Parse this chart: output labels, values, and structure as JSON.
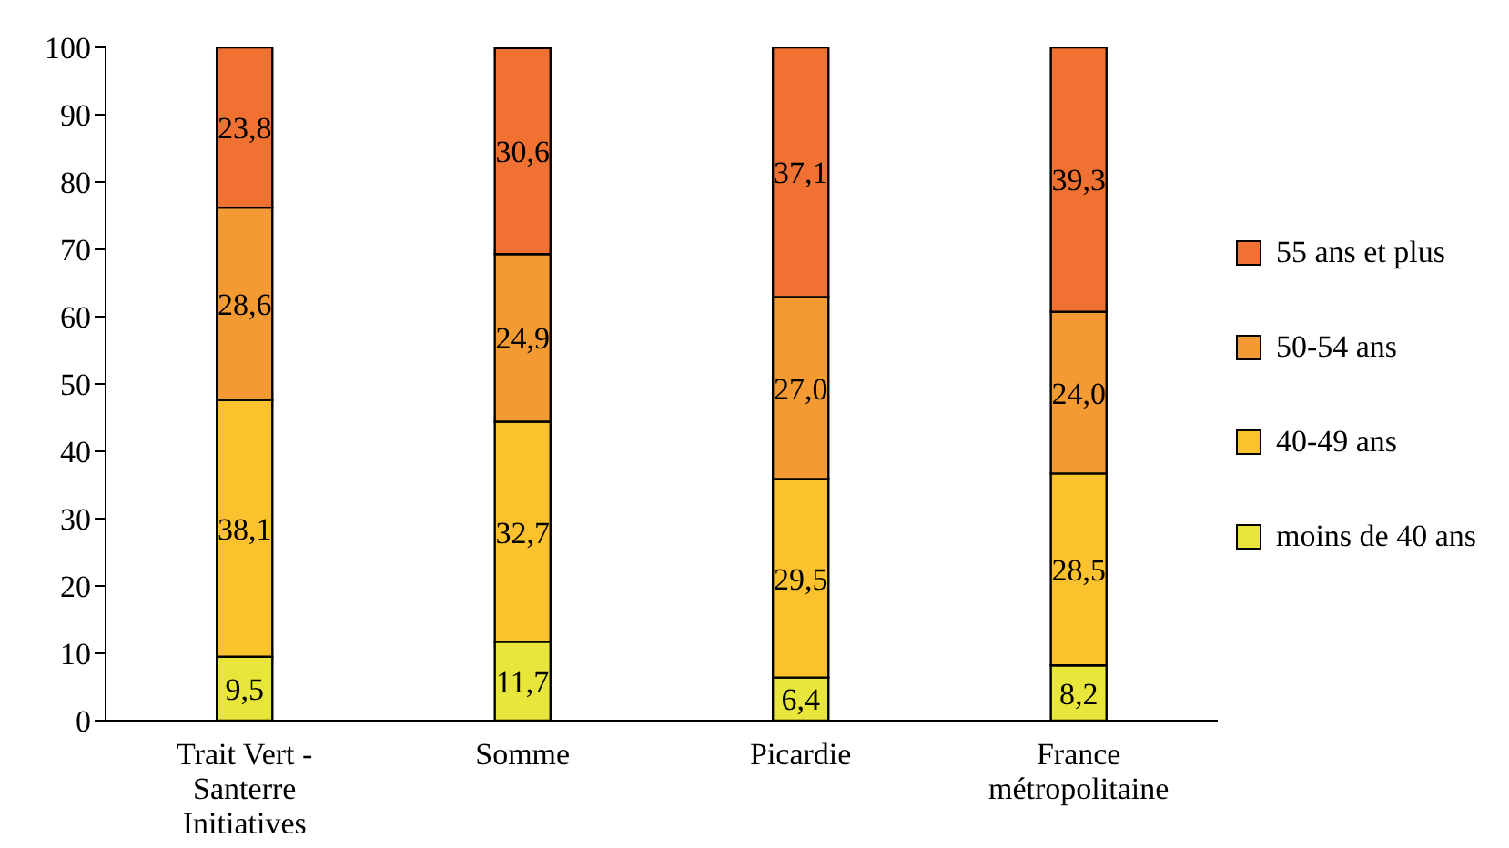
{
  "chart_data": {
    "type": "bar",
    "stacked": true,
    "categories": [
      "Trait Vert - Santerre Initiatives",
      "Somme",
      "Picardie",
      "France métropolitaine"
    ],
    "series": [
      {
        "name": "moins de 40 ans",
        "color": "#e8e63a",
        "values": [
          9.5,
          11.7,
          6.4,
          8.2
        ],
        "value_labels": [
          "9,5",
          "11,7",
          "6,4",
          "8,2"
        ]
      },
      {
        "name": "40-49 ans",
        "color": "#fbc22e",
        "values": [
          38.1,
          32.7,
          29.5,
          28.5
        ],
        "value_labels": [
          "38,1",
          "32,7",
          "29,5",
          "28,5"
        ]
      },
      {
        "name": "50-54 ans",
        "color": "#f49a32",
        "values": [
          28.6,
          24.9,
          27.0,
          24.0
        ],
        "value_labels": [
          "28,6",
          "24,9",
          "27,0",
          "24,0"
        ]
      },
      {
        "name": "55 ans et plus",
        "color": "#f07131",
        "values": [
          23.8,
          30.6,
          37.1,
          39.3
        ],
        "value_labels": [
          "23,8",
          "30,6",
          "37,1",
          "39,3"
        ]
      }
    ],
    "ylim": [
      0,
      100
    ],
    "yticks": [
      0,
      10,
      20,
      30,
      40,
      50,
      60,
      70,
      80,
      90,
      100
    ],
    "grid": false,
    "legend": "right"
  }
}
